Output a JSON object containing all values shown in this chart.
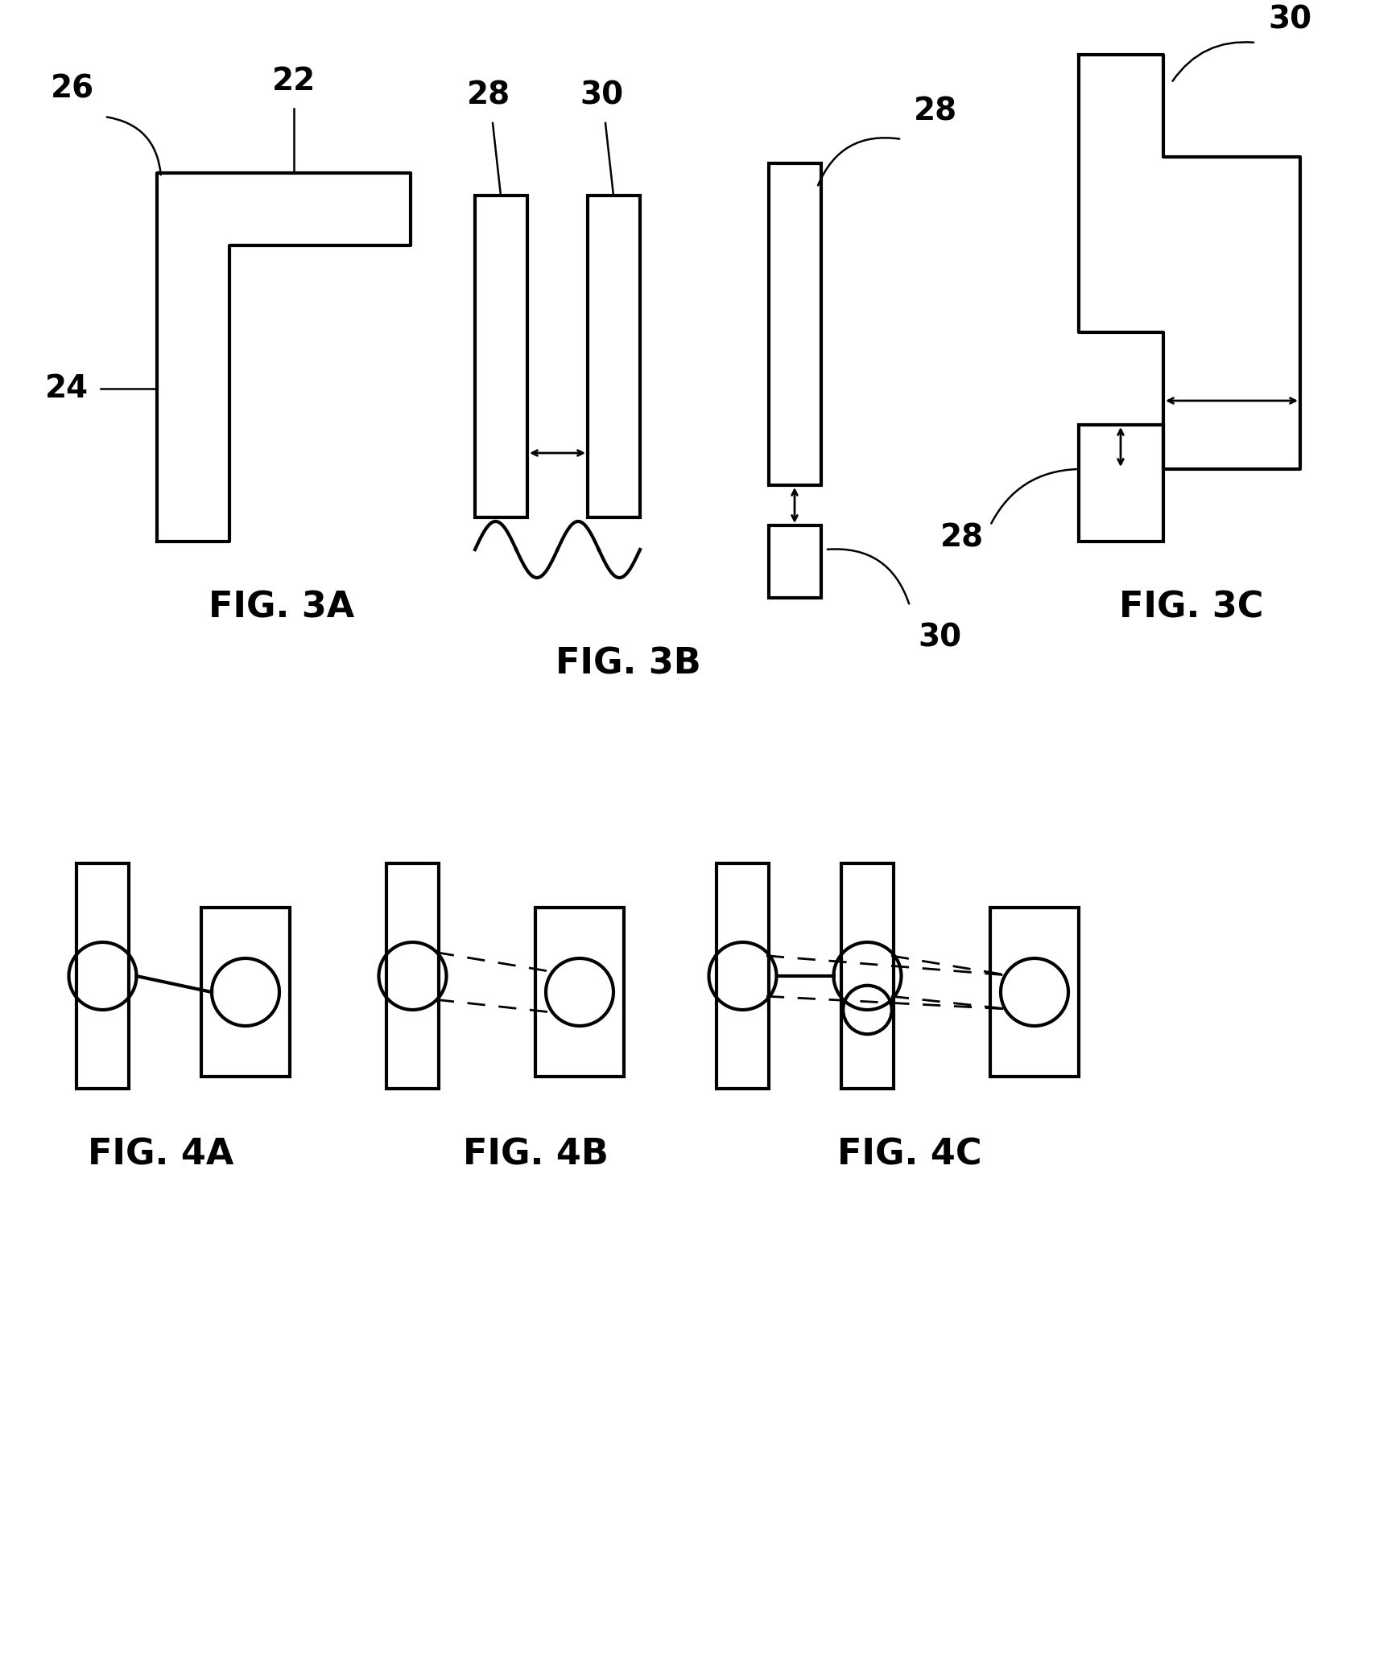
{
  "fig_labels": {
    "3A": "FIG. 3A",
    "3B": "FIG. 3B",
    "3C": "FIG. 3C",
    "4A": "FIG. 4A",
    "4B": "FIG. 4B",
    "4C": "FIG. 4C"
  },
  "label_fontsize": 32,
  "number_fontsize": 28,
  "bg_color": "#ffffff",
  "line_color": "#000000",
  "linewidth": 3.0
}
